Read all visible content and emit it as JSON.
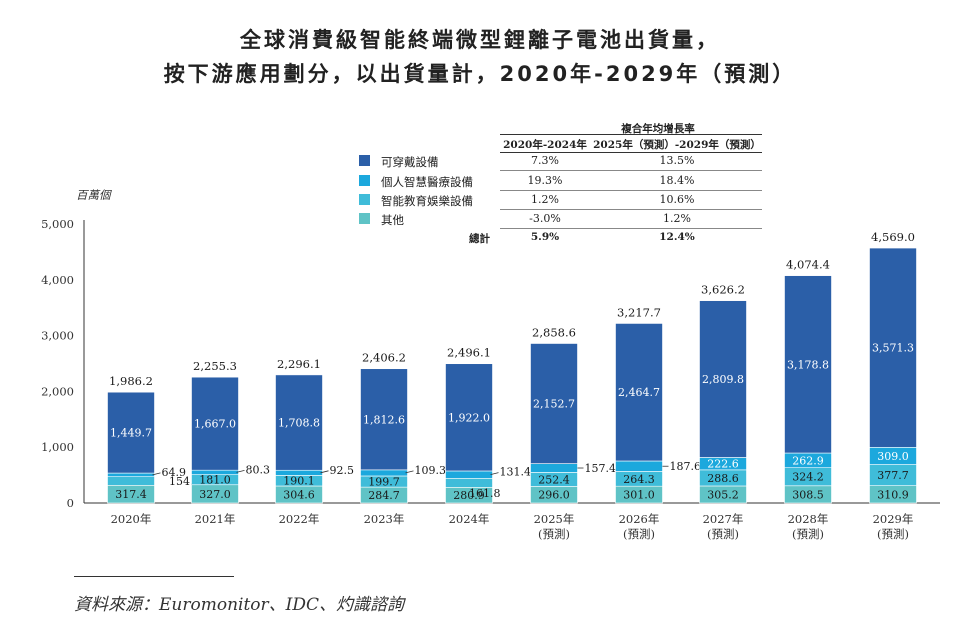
{
  "title_line1": "全球消費級智能終端微型鋰離子電池出貨量，",
  "title_line2": "按下游應用劃分，以出貨量計，2020年-2029年（預測）",
  "cagr_table": {
    "header": "複合年均增長率",
    "col1": "2020年-2024年",
    "col2": "2025年（預測）-2029年（預測）",
    "rows": [
      {
        "label": "可穿戴設備",
        "c1": "7.3%",
        "c2": "13.5%"
      },
      {
        "label": "個人智慧醫療設備",
        "c1": "19.3%",
        "c2": "18.4%"
      },
      {
        "label": "智能教育娛樂設備",
        "c1": "1.2%",
        "c2": "10.6%"
      },
      {
        "label": "其他",
        "c1": "-3.0%",
        "c2": "1.2%"
      }
    ],
    "total_label": "總計",
    "total_c1": "5.9%",
    "total_c2": "12.4%"
  },
  "source": "資料來源：Euromonitor、IDC、灼識諮詢",
  "chart_data": {
    "type": "bar",
    "stacked": true,
    "ylabel": "百萬個",
    "ylim": [
      0,
      5000
    ],
    "yticks": [
      "0",
      "1,000",
      "2,000",
      "3,000",
      "4,000",
      "5,000"
    ],
    "categories": [
      "2020年",
      "2021年",
      "2022年",
      "2023年",
      "2024年",
      "2025年",
      "2026年",
      "2027年",
      "2028年",
      "2029年"
    ],
    "category_notes": [
      "",
      "",
      "",
      "",
      "",
      "(預測)",
      "(預測)",
      "(預測)",
      "(預測)",
      "(預測)"
    ],
    "colors": {
      "可穿戴設備": "#2b5fa8",
      "個人智慧醫療設備": "#1ca8dd",
      "智能教育娛樂設備": "#3fbcd9",
      "其他": "#5fc3c6"
    },
    "series": [
      {
        "name": "其他",
        "values": [
          317.4,
          327.0,
          304.6,
          284.7,
          280.9,
          296.0,
          301.0,
          305.2,
          308.5,
          310.9
        ],
        "labels": [
          "317.4",
          "327.0",
          "304.6",
          "284.7",
          "280.9",
          "296.0",
          "301.0",
          "305.2",
          "308.5",
          "310.9"
        ]
      },
      {
        "name": "智能教育娛樂設備",
        "values": [
          154.1,
          181.0,
          190.1,
          199.7,
          161.8,
          252.4,
          264.3,
          288.6,
          324.2,
          377.7
        ],
        "labels": [
          "154.1",
          "181.0",
          "190.1",
          "199.7",
          "161.8",
          "252.4",
          "264.3",
          "288.6",
          "324.2",
          "377.7"
        ]
      },
      {
        "name": "個人智慧醫療設備",
        "values": [
          64.9,
          80.3,
          92.5,
          109.3,
          131.4,
          157.4,
          187.6,
          222.6,
          262.9,
          309.0
        ],
        "labels": [
          "64.9",
          "80.3",
          "92.5",
          "109.3",
          "131.4",
          "157.4",
          "187.6",
          "222.6",
          "262.9",
          "309.0"
        ]
      },
      {
        "name": "可穿戴設備",
        "values": [
          1449.7,
          1667.0,
          1708.8,
          1812.6,
          1922.0,
          2152.7,
          2464.7,
          2809.8,
          3178.8,
          3571.3
        ],
        "labels": [
          "1,449.7",
          "1,667.0",
          "1,708.8",
          "1,812.6",
          "1,922.0",
          "2,152.7",
          "2,464.7",
          "2,809.8",
          "3,178.8",
          "3,571.3"
        ]
      }
    ],
    "totals": [
      1986.2,
      2255.3,
      2296.1,
      2406.2,
      2496.1,
      2858.6,
      3217.7,
      3626.2,
      4074.4,
      4569.0
    ],
    "total_labels": [
      "1,986.2",
      "2,255.3",
      "2,296.1",
      "2,406.2",
      "2,496.1",
      "2,858.6",
      "3,217.7",
      "3,626.2",
      "4,074.4",
      "4,569.0"
    ]
  }
}
